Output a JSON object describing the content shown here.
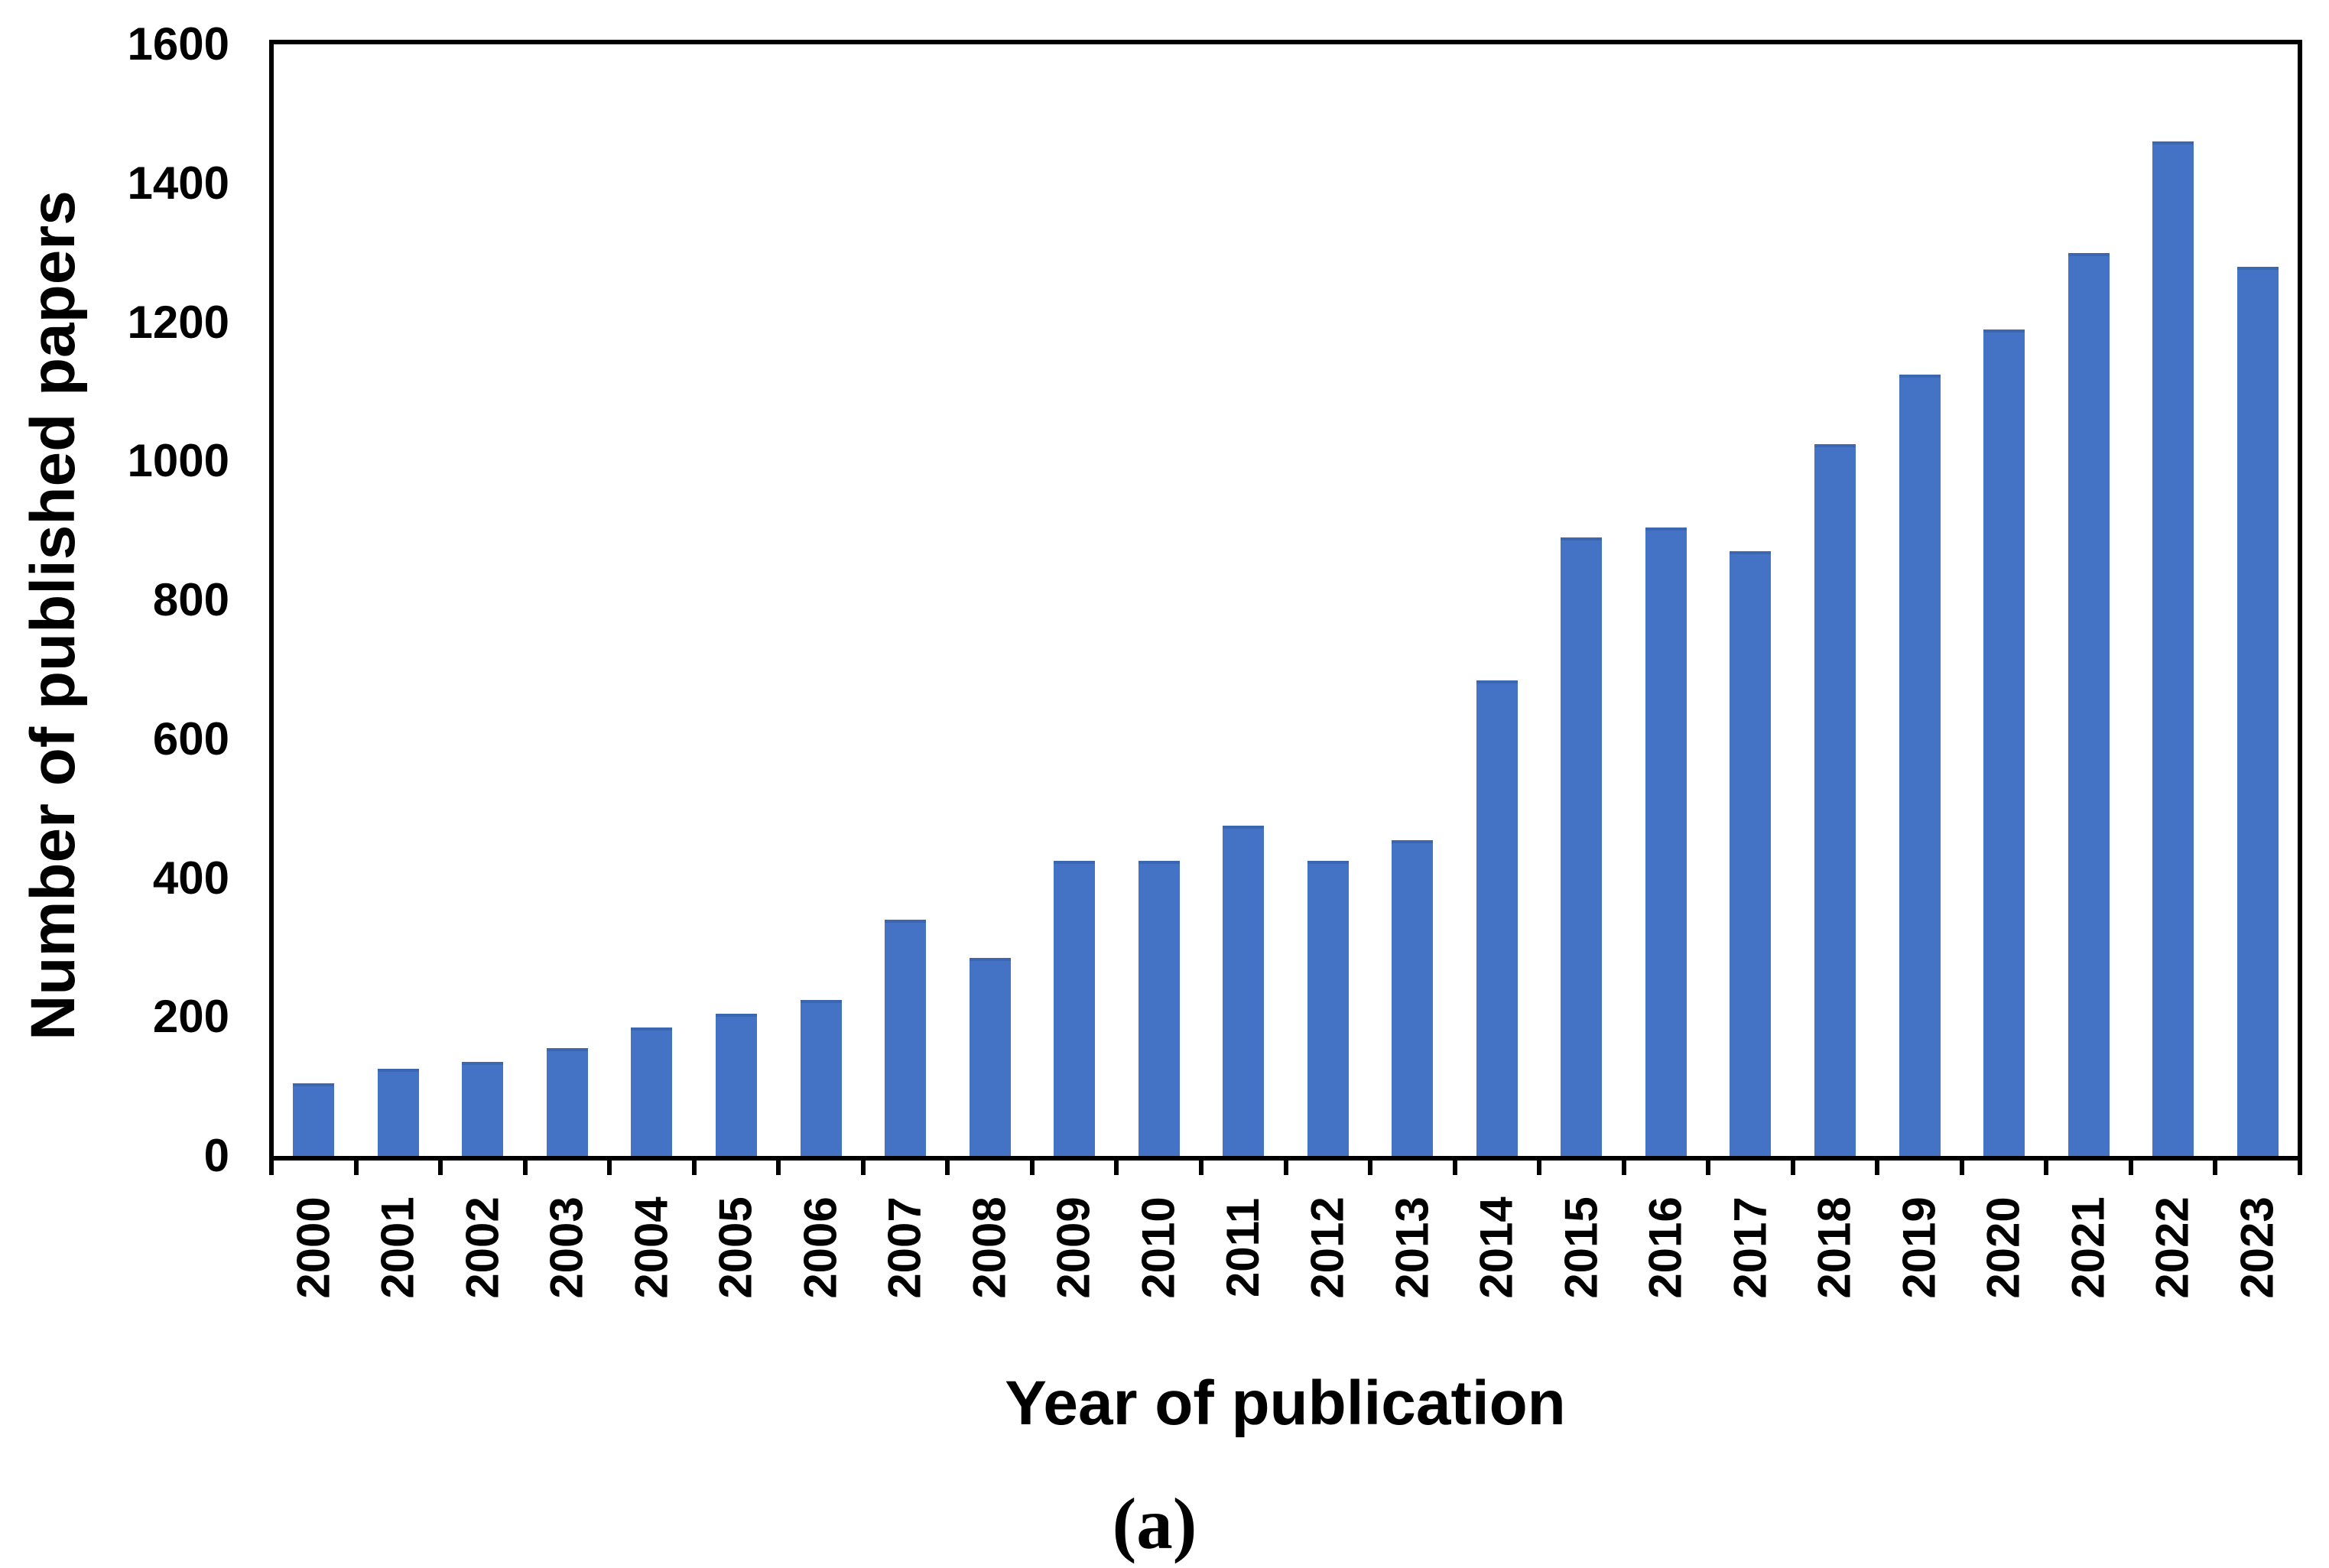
{
  "figure": {
    "caption": "(a)"
  },
  "chart_data": {
    "type": "bar",
    "title": "",
    "xlabel": "Year of publication",
    "ylabel": "Number of published papers",
    "categories": [
      "2000",
      "2001",
      "2002",
      "2003",
      "2004",
      "2005",
      "2006",
      "2007",
      "2008",
      "2009",
      "2010",
      "2011",
      "2012",
      "2013",
      "2014",
      "2015",
      "2016",
      "2017",
      "2018",
      "2019",
      "2020",
      "2021",
      "2022",
      "2023"
    ],
    "values": [
      105,
      125,
      135,
      155,
      185,
      205,
      225,
      340,
      285,
      425,
      425,
      475,
      425,
      455,
      685,
      890,
      905,
      870,
      1025,
      1125,
      1190,
      1300,
      1460,
      1280
    ],
    "ylim": [
      0,
      1600
    ],
    "yticks": [
      0,
      200,
      400,
      600,
      800,
      1000,
      1200,
      1400,
      1600
    ],
    "x_tick_label_rotation": -90,
    "grid": false,
    "legend_position": "none",
    "bar_color": "#4472C4",
    "bar_top_edge_color": "#3A66B2",
    "axis_color": "#000000",
    "plot_background": "#FFFFFF"
  }
}
